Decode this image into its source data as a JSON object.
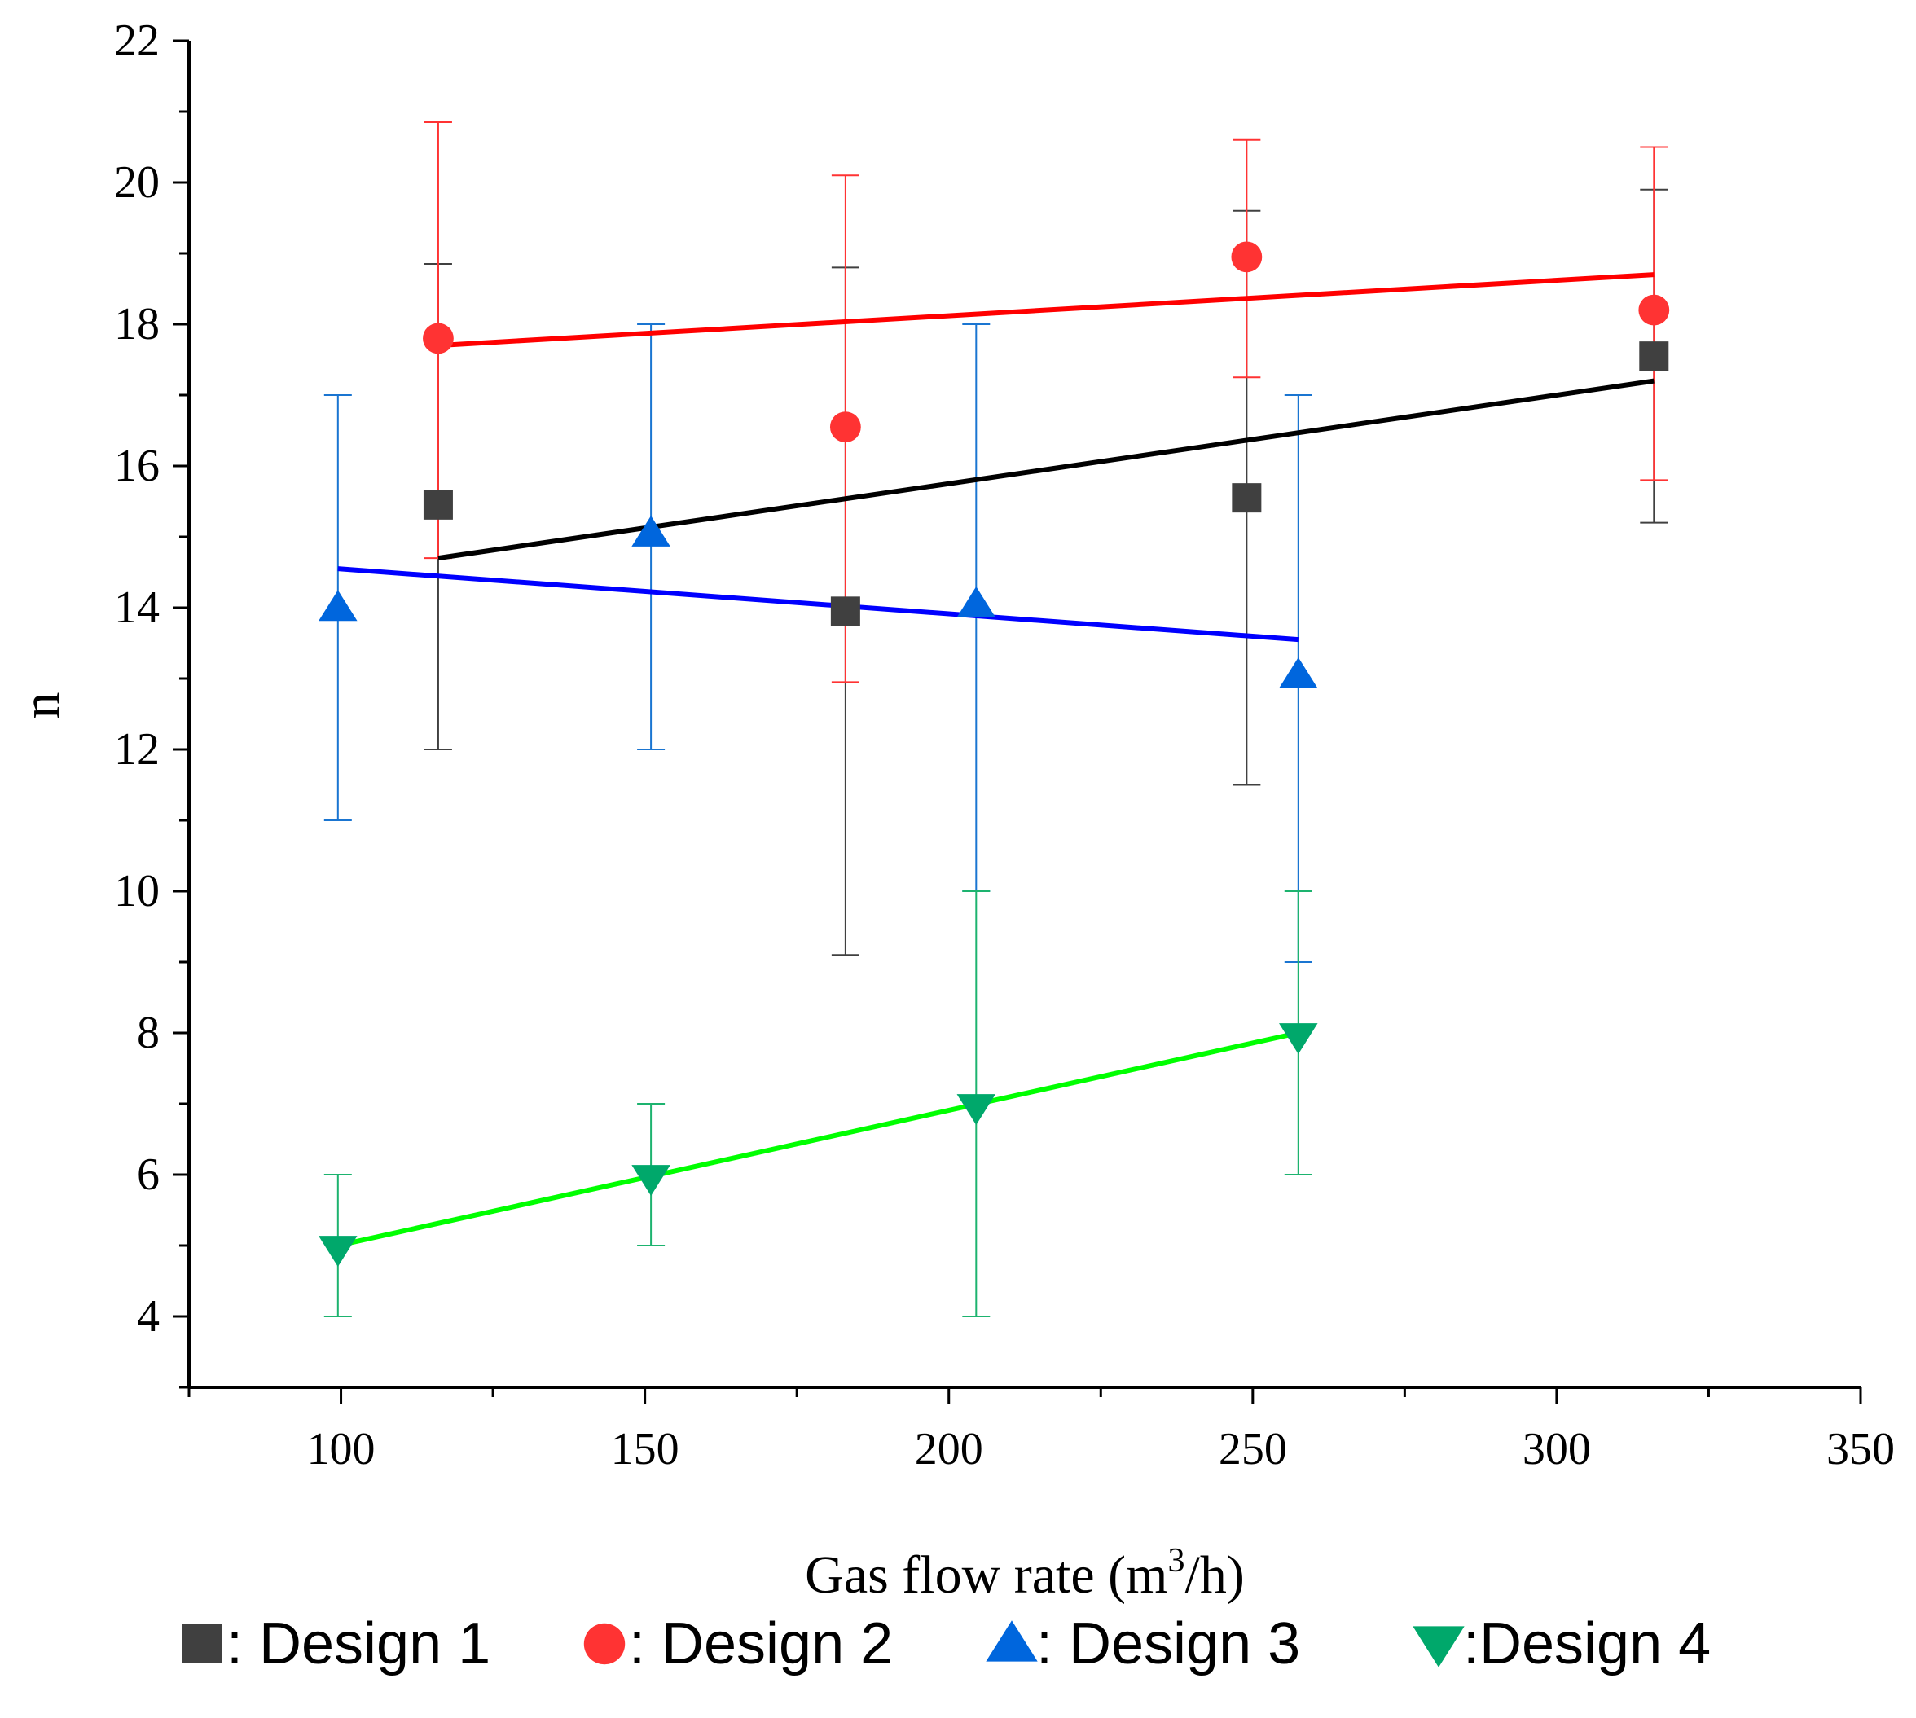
{
  "chart_data": {
    "type": "scatter",
    "xlabel_main": "Gas flow rate (m",
    "xlabel_sup": "3",
    "xlabel_tail": "/h)",
    "ylabel": "n",
    "xlim": [
      75,
      350
    ],
    "ylim": [
      3,
      22
    ],
    "x_ticks": [
      100,
      150,
      200,
      250,
      300,
      350
    ],
    "y_ticks": [
      4,
      6,
      8,
      10,
      12,
      14,
      16,
      18,
      20,
      22
    ],
    "legend_position": "bottom",
    "series": [
      {
        "name": "Design 1",
        "legend_label": ": Design 1",
        "marker": "square",
        "color": "#404040",
        "error_color": "#404040",
        "fit_color": "#000000",
        "points": [
          {
            "x": 116,
            "y": 15.45,
            "err_low": 12.0,
            "err_high": 18.85
          },
          {
            "x": 183,
            "y": 13.95,
            "err_low": 9.1,
            "err_high": 18.8
          },
          {
            "x": 249,
            "y": 15.55,
            "err_low": 11.5,
            "err_high": 19.6
          },
          {
            "x": 316,
            "y": 17.55,
            "err_low": 15.2,
            "err_high": 19.9
          }
        ],
        "fit": {
          "x": [
            116,
            316
          ],
          "y": [
            14.7,
            17.2
          ]
        }
      },
      {
        "name": "Design 2",
        "legend_label": ": Design 2",
        "marker": "circle",
        "color": "#ff3333",
        "error_color": "#ff3333",
        "fit_color": "#ff0000",
        "points": [
          {
            "x": 116,
            "y": 17.8,
            "err_low": 14.7,
            "err_high": 20.85
          },
          {
            "x": 183,
            "y": 16.55,
            "err_low": 12.95,
            "err_high": 20.1
          },
          {
            "x": 249,
            "y": 18.95,
            "err_low": 17.25,
            "err_high": 20.6
          },
          {
            "x": 316,
            "y": 18.2,
            "err_low": 15.8,
            "err_high": 20.5
          }
        ],
        "fit": {
          "x": [
            116,
            316
          ],
          "y": [
            17.7,
            18.7
          ]
        }
      },
      {
        "name": "Design 3",
        "legend_label": ": Design 3",
        "marker": "triangle-up",
        "color": "#0066dd",
        "error_color": "#1a75d1",
        "fit_color": "#0000ff",
        "points": [
          {
            "x": 99.5,
            "y": 14.0,
            "err_low": 11.0,
            "err_high": 17.0
          },
          {
            "x": 151,
            "y": 15.05,
            "err_low": 12.0,
            "err_high": 18.0
          },
          {
            "x": 204.5,
            "y": 14.05,
            "err_low": 10.0,
            "err_high": 18.0
          },
          {
            "x": 257.5,
            "y": 13.05,
            "err_low": 9.0,
            "err_high": 17.0
          }
        ],
        "fit": {
          "x": [
            99.5,
            257.5
          ],
          "y": [
            14.55,
            13.55
          ]
        }
      },
      {
        "name": "Design 4",
        "legend_label": ":Design 4",
        "marker": "triangle-down",
        "color": "#00a86b",
        "error_color": "#1db36f",
        "fit_color": "#00ff00",
        "points": [
          {
            "x": 99.5,
            "y": 4.95,
            "err_low": 4.0,
            "err_high": 6.0
          },
          {
            "x": 151,
            "y": 5.95,
            "err_low": 5.0,
            "err_high": 7.0
          },
          {
            "x": 204.5,
            "y": 6.95,
            "err_low": 4.0,
            "err_high": 10.0
          },
          {
            "x": 257.5,
            "y": 7.95,
            "err_low": 6.0,
            "err_high": 10.0
          }
        ],
        "fit": {
          "x": [
            99.5,
            257.5
          ],
          "y": [
            5.0,
            8.0
          ]
        }
      }
    ]
  }
}
